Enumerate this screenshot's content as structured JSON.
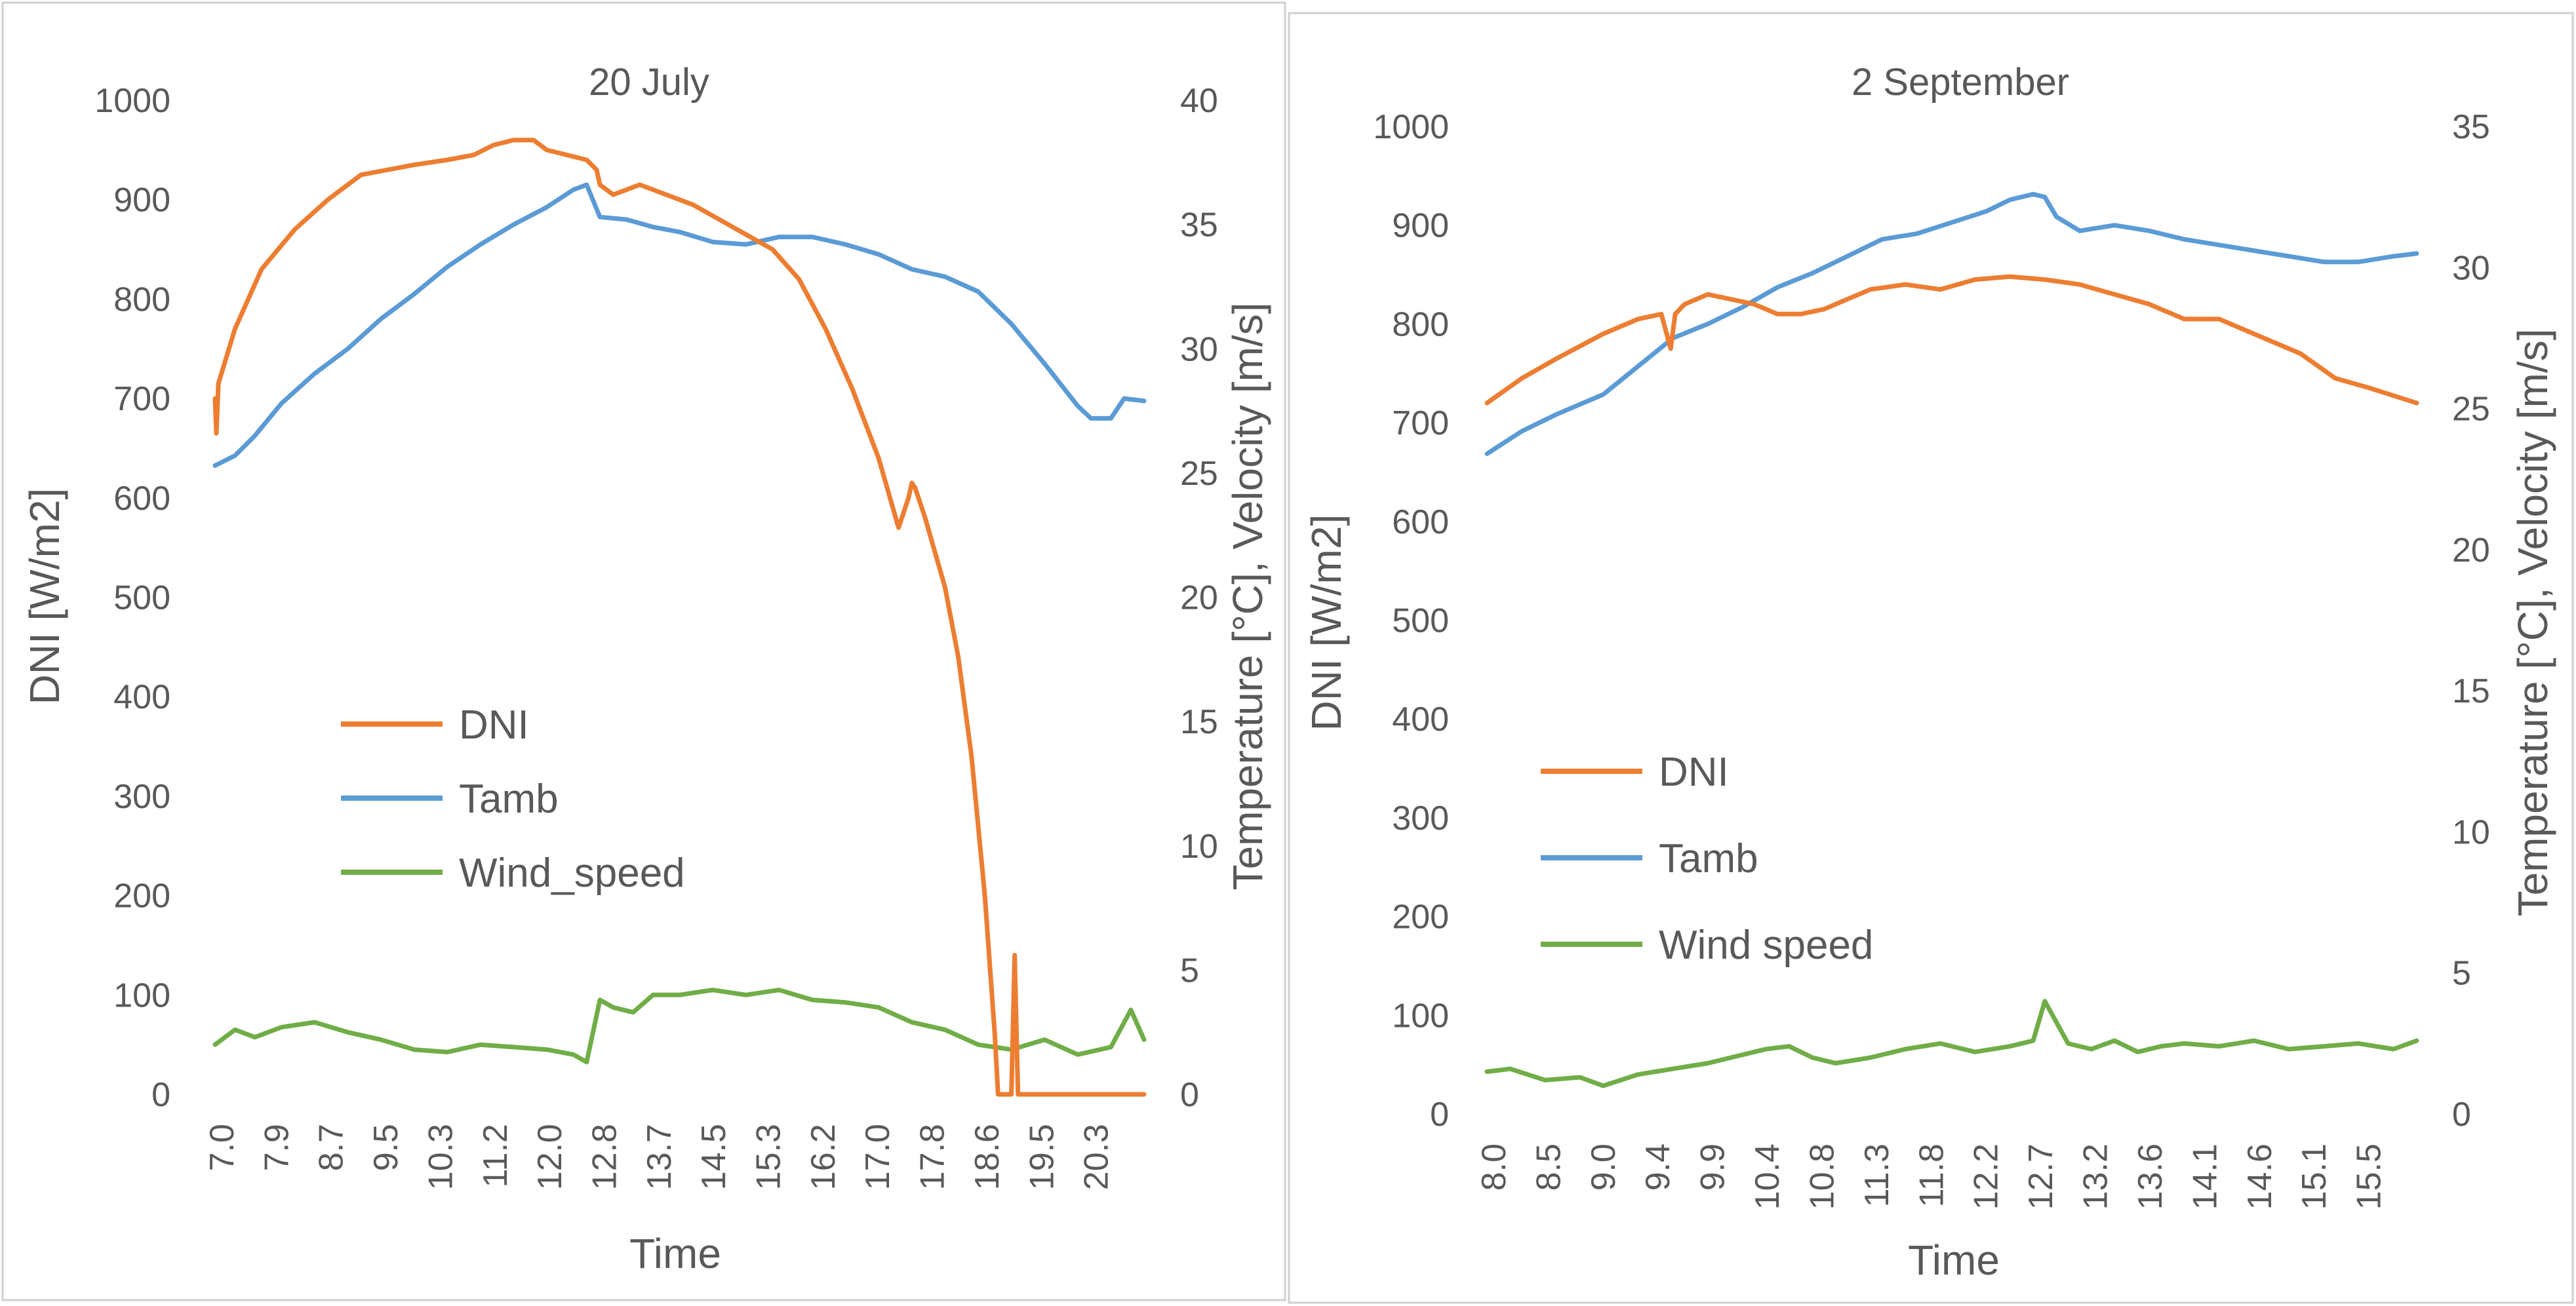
{
  "colors": {
    "DNI": "#ED7D31",
    "Tamb": "#5B9BD5",
    "Wind": "#70AD47"
  },
  "chart_data": [
    {
      "type": "line",
      "title": "20 July",
      "xlabel": "Time",
      "ylabel_left": "DNI [W/m2]",
      "ylabel_right": "Temperature [°C], Velocity [m/s]",
      "ylim_left": [
        0,
        1000
      ],
      "ylim_right": [
        0,
        40
      ],
      "yticks_left": [
        "0",
        "100",
        "200",
        "300",
        "400",
        "500",
        "600",
        "700",
        "800",
        "900",
        "1000"
      ],
      "yticks_right": [
        "0",
        "5",
        "10",
        "15",
        "20",
        "25",
        "30",
        "35",
        "40"
      ],
      "xlim": [
        7.0,
        21.0
      ],
      "xticks": [
        "7.0",
        "7.9",
        "8.7",
        "9.5",
        "10.3",
        "11.2",
        "12.0",
        "12.8",
        "13.7",
        "14.5",
        "15.3",
        "16.2",
        "17.0",
        "17.8",
        "18.6",
        "19.5",
        "20.3"
      ],
      "legend_position": "center-left",
      "grid": false,
      "series": [
        {
          "name": "DNI",
          "axis": "left",
          "color_key": "DNI",
          "x": [
            7.0,
            7.02,
            7.05,
            7.3,
            7.7,
            8.2,
            8.7,
            9.2,
            9.6,
            10.0,
            10.5,
            10.9,
            11.2,
            11.5,
            11.8,
            12.0,
            12.3,
            12.6,
            12.75,
            12.8,
            13.0,
            13.4,
            13.8,
            14.2,
            14.6,
            15.0,
            15.4,
            15.8,
            16.2,
            16.6,
            17.0,
            17.3,
            17.45,
            17.5,
            17.55,
            17.7,
            18.0,
            18.2,
            18.4,
            18.6,
            18.75,
            18.8,
            18.83,
            18.88,
            18.95,
            19.0,
            19.05,
            19.1,
            19.2,
            19.3,
            19.5,
            20.0,
            20.5,
            21.0
          ],
          "y": [
            700,
            665,
            715,
            770,
            830,
            870,
            900,
            925,
            930,
            935,
            940,
            945,
            955,
            960,
            960,
            950,
            945,
            940,
            930,
            915,
            905,
            915,
            905,
            895,
            880,
            865,
            850,
            820,
            770,
            710,
            640,
            570,
            600,
            615,
            610,
            580,
            510,
            440,
            340,
            200,
            60,
            0,
            0,
            0,
            0,
            0,
            140,
            0,
            0,
            0,
            0,
            0,
            0,
            0
          ]
        },
        {
          "name": "Tamb",
          "axis": "right",
          "color_key": "Tamb",
          "x": [
            7.0,
            7.3,
            7.6,
            8.0,
            8.5,
            9.0,
            9.5,
            10.0,
            10.5,
            11.0,
            11.5,
            12.0,
            12.4,
            12.6,
            12.8,
            13.2,
            13.6,
            14.0,
            14.5,
            15.0,
            15.5,
            16.0,
            16.5,
            17.0,
            17.5,
            18.0,
            18.5,
            19.0,
            19.5,
            20.0,
            20.2,
            20.5,
            20.7,
            21.0
          ],
          "y": [
            25.3,
            25.7,
            26.5,
            27.8,
            29.0,
            30.0,
            31.2,
            32.2,
            33.3,
            34.2,
            35.0,
            35.7,
            36.4,
            36.6,
            35.3,
            35.2,
            34.9,
            34.7,
            34.3,
            34.2,
            34.5,
            34.5,
            34.2,
            33.8,
            33.2,
            32.9,
            32.3,
            31.0,
            29.4,
            27.7,
            27.2,
            27.2,
            28.0,
            27.9
          ]
        },
        {
          "name": "Wind_speed",
          "axis": "right",
          "color_key": "Wind",
          "x": [
            7.0,
            7.3,
            7.6,
            8.0,
            8.5,
            9.0,
            9.5,
            10.0,
            10.5,
            11.0,
            11.5,
            12.0,
            12.4,
            12.6,
            12.8,
            13.0,
            13.3,
            13.6,
            14.0,
            14.5,
            15.0,
            15.5,
            16.0,
            16.5,
            17.0,
            17.5,
            18.0,
            18.5,
            19.0,
            19.5,
            20.0,
            20.5,
            20.8,
            21.0
          ],
          "y": [
            2.0,
            2.6,
            2.3,
            2.7,
            2.9,
            2.5,
            2.2,
            1.8,
            1.7,
            2.0,
            1.9,
            1.8,
            1.6,
            1.3,
            3.8,
            3.5,
            3.3,
            4.0,
            4.0,
            4.2,
            4.0,
            4.2,
            3.8,
            3.7,
            3.5,
            2.9,
            2.6,
            2.0,
            1.8,
            2.2,
            1.6,
            1.9,
            3.4,
            2.2
          ]
        }
      ]
    },
    {
      "type": "line",
      "title": "2 September",
      "xlabel": "Time",
      "ylabel_left": "DNI [W/m2]",
      "ylabel_right": "Temperature [°C], Velocity [m/s]",
      "ylim_left": [
        0,
        1000
      ],
      "ylim_right": [
        0,
        35
      ],
      "yticks_left": [
        "0",
        "100",
        "200",
        "300",
        "400",
        "500",
        "600",
        "700",
        "800",
        "900",
        "1000"
      ],
      "yticks_right": [
        "0",
        "5",
        "10",
        "15",
        "20",
        "25",
        "30",
        "35"
      ],
      "xlim": [
        8.0,
        16.0
      ],
      "xticks": [
        "8.0",
        "8.5",
        "9.0",
        "9.4",
        "9.9",
        "10.4",
        "10.8",
        "11.3",
        "11.8",
        "12.2",
        "12.7",
        "13.2",
        "13.6",
        "14.1",
        "14.6",
        "15.1",
        "15.5"
      ],
      "legend_position": "center-left",
      "grid": false,
      "series": [
        {
          "name": "DNI",
          "axis": "left",
          "color_key": "DNI",
          "x": [
            8.0,
            8.3,
            8.6,
            9.0,
            9.3,
            9.5,
            9.58,
            9.62,
            9.7,
            9.9,
            10.1,
            10.3,
            10.5,
            10.7,
            10.9,
            11.1,
            11.3,
            11.6,
            11.9,
            12.2,
            12.5,
            12.8,
            13.1,
            13.4,
            13.7,
            14.0,
            14.3,
            14.6,
            15.0,
            15.3,
            15.6,
            16.0
          ],
          "y": [
            720,
            745,
            765,
            790,
            805,
            810,
            775,
            810,
            820,
            830,
            825,
            820,
            810,
            810,
            815,
            825,
            835,
            840,
            835,
            845,
            848,
            845,
            840,
            830,
            820,
            805,
            805,
            790,
            770,
            745,
            735,
            720
          ]
        },
        {
          "name": "Tamb",
          "axis": "right",
          "color_key": "Tamb",
          "x": [
            8.0,
            8.3,
            8.6,
            9.0,
            9.3,
            9.6,
            9.9,
            10.2,
            10.5,
            10.8,
            11.1,
            11.4,
            11.7,
            12.0,
            12.3,
            12.5,
            12.7,
            12.8,
            12.9,
            13.1,
            13.4,
            13.7,
            14.0,
            14.3,
            14.6,
            14.9,
            15.2,
            15.5,
            15.8,
            16.0
          ],
          "y": [
            23.4,
            24.2,
            24.8,
            25.5,
            26.5,
            27.5,
            28.0,
            28.6,
            29.3,
            29.8,
            30.4,
            31.0,
            31.2,
            31.6,
            32.0,
            32.4,
            32.6,
            32.5,
            31.8,
            31.3,
            31.5,
            31.3,
            31.0,
            30.8,
            30.6,
            30.4,
            30.2,
            30.2,
            30.4,
            30.5
          ]
        },
        {
          "name": "Wind speed",
          "axis": "right",
          "color_key": "Wind",
          "x": [
            8.0,
            8.2,
            8.5,
            8.8,
            9.0,
            9.3,
            9.6,
            9.9,
            10.2,
            10.4,
            10.6,
            10.8,
            11.0,
            11.3,
            11.6,
            11.9,
            12.2,
            12.5,
            12.7,
            12.8,
            13.0,
            13.2,
            13.4,
            13.6,
            13.8,
            14.0,
            14.3,
            14.6,
            14.9,
            15.2,
            15.5,
            15.8,
            16.0
          ],
          "y": [
            1.5,
            1.6,
            1.2,
            1.3,
            1.0,
            1.4,
            1.6,
            1.8,
            2.1,
            2.3,
            2.4,
            2.0,
            1.8,
            2.0,
            2.3,
            2.5,
            2.2,
            2.4,
            2.6,
            4.0,
            2.5,
            2.3,
            2.6,
            2.2,
            2.4,
            2.5,
            2.4,
            2.6,
            2.3,
            2.4,
            2.5,
            2.3,
            2.6
          ]
        }
      ]
    }
  ]
}
